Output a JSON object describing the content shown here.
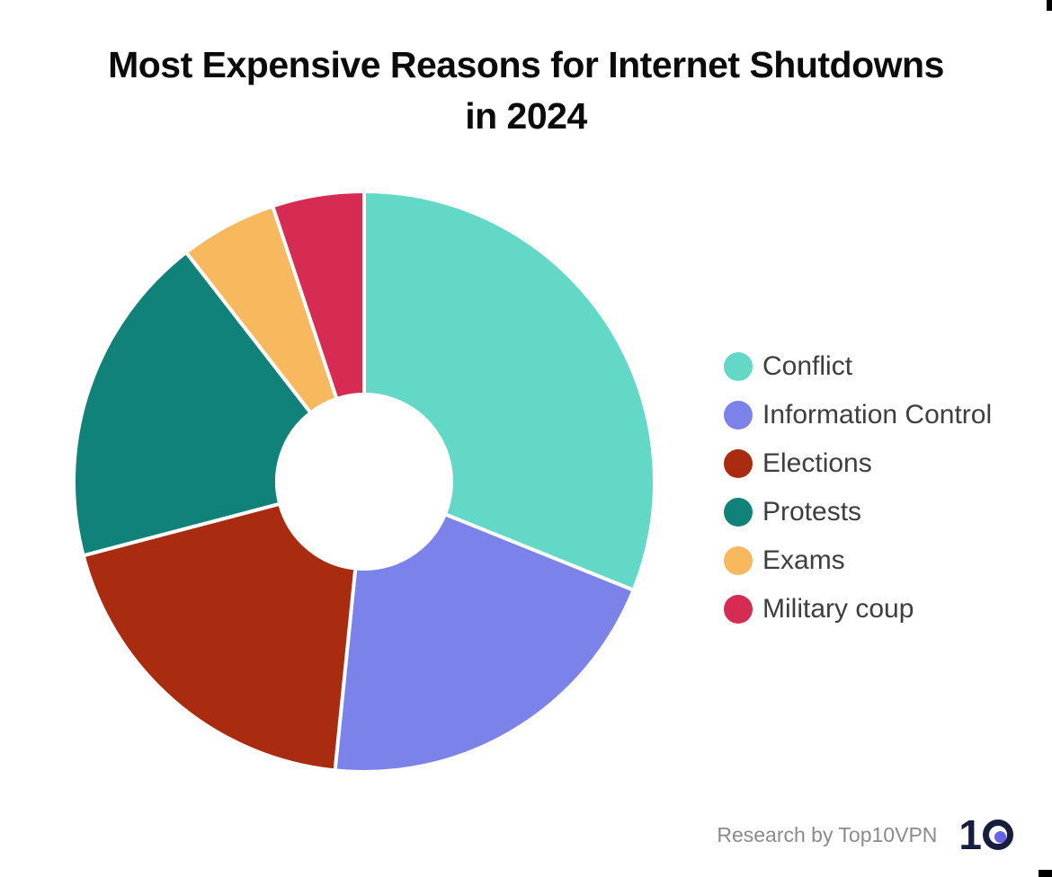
{
  "page": {
    "background": "#FFFFFF",
    "title_line1": "Most Expensive Reasons for Internet Shutdowns",
    "title_line2": "in 2024"
  },
  "footer": {
    "credit_text": "Research by Top10VPN",
    "logo_text": "10",
    "logo_digit": "1",
    "logo_navy": "#161D3E",
    "logo_dot_color": "#6A63E8"
  },
  "chart_data": {
    "type": "pie",
    "donut": true,
    "title": "Most Expensive Reasons for Internet Shutdowns in 2024",
    "labels": [
      "Conflict",
      "Information Control",
      "Elections",
      "Protests",
      "Exams",
      "Military coup"
    ],
    "values_percent_est": [
      31.1,
      20.5,
      19.3,
      18.6,
      5.4,
      5.1
    ],
    "colors": [
      "#63D8C7",
      "#7B83EA",
      "#A92B10",
      "#11827A",
      "#F8B95E",
      "#D62B52"
    ],
    "start_angle_deg": 0,
    "direction": "clockwise",
    "inner_radius_ratio": 0.3,
    "slice_gap_color": "#FFFFFF",
    "legend_position": "right",
    "data_labels_shown": false,
    "legend_text_color": "#3E3E3E"
  }
}
